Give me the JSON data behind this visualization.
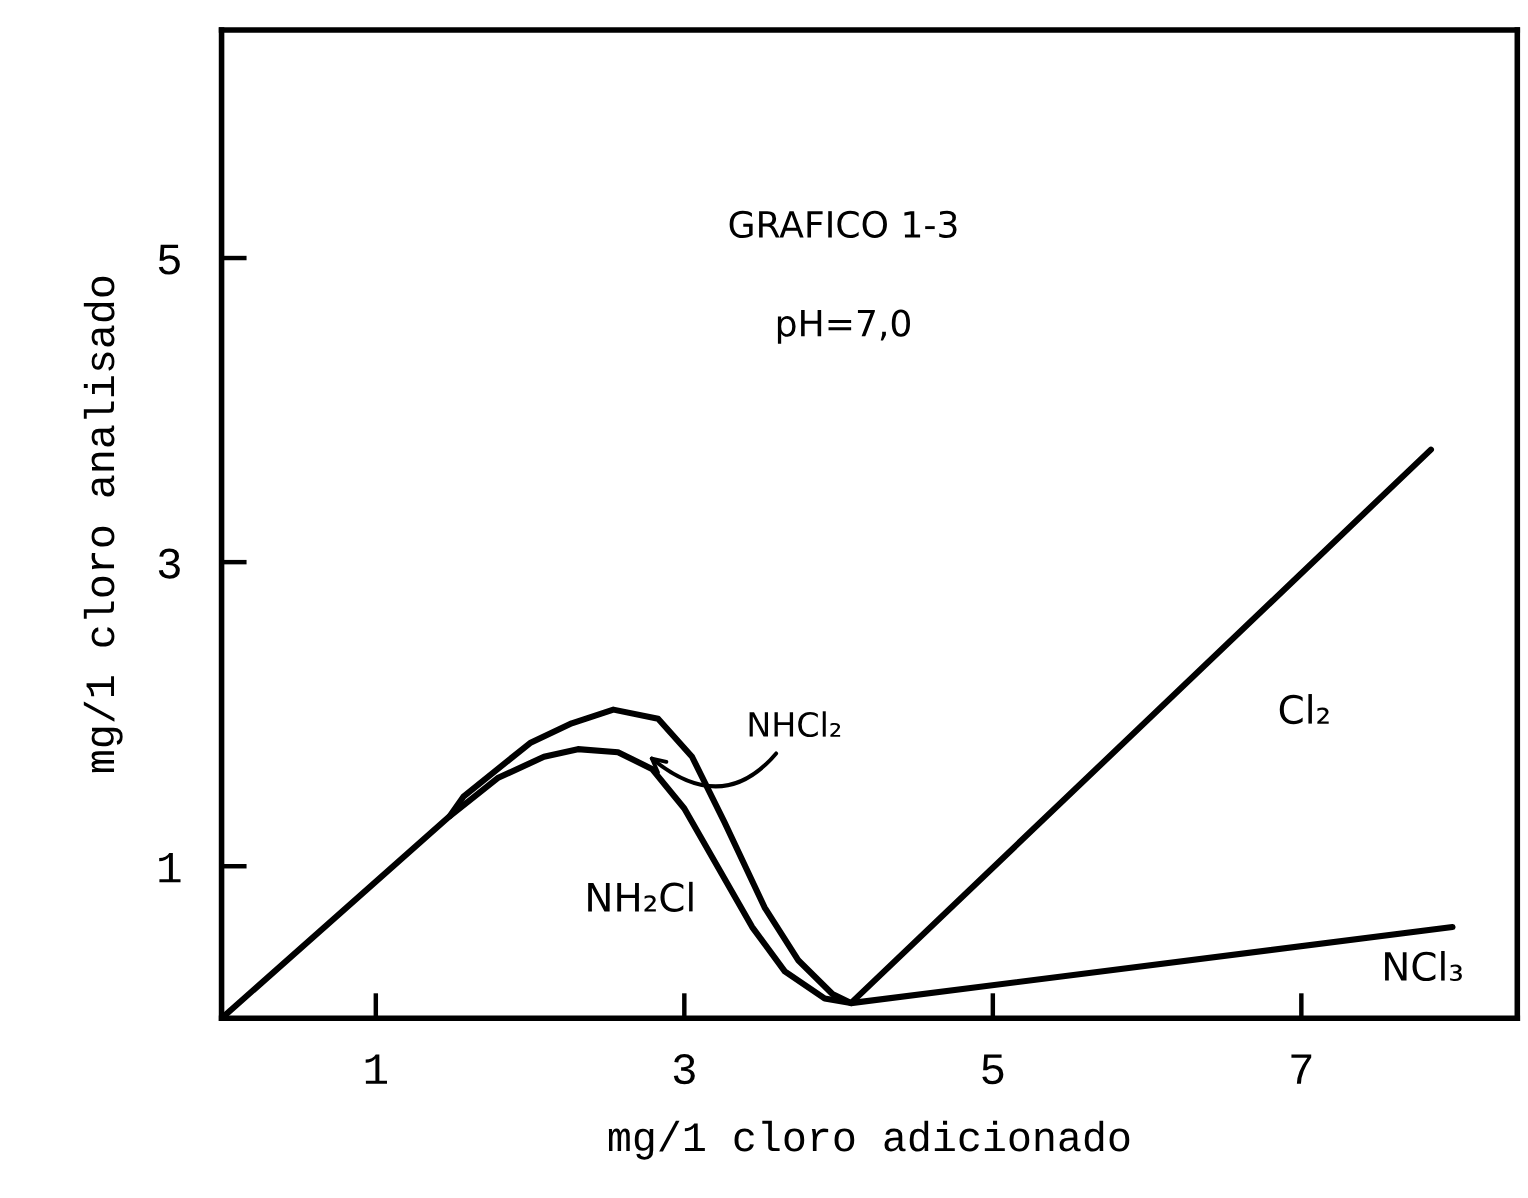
{
  "chart_data": {
    "type": "line",
    "title": "GRAFICO 1-3",
    "subtitle": "pH=7,0",
    "xlabel": "mg/1 cloro adicionado",
    "ylabel": "mg/1 cloro analisado",
    "xlim": [
      0,
      8.4
    ],
    "ylim": [
      0,
      6.5
    ],
    "xticks": [
      1,
      3,
      5,
      7
    ],
    "yticks": [
      1,
      3,
      5
    ],
    "grid": false,
    "legend": false,
    "marker": "none",
    "line_style": "solid",
    "series": [
      {
        "color": "#000000",
        "x": [
          0,
          1.48,
          1.57,
          2.0,
          2.27,
          2.54,
          2.83,
          3.05,
          3.26,
          3.52,
          3.74,
          3.96,
          4.08,
          7.84
        ],
        "values": [
          0,
          1.33,
          1.46,
          1.81,
          1.94,
          2.03,
          1.97,
          1.72,
          1.29,
          0.73,
          0.38,
          0.16,
          0.1,
          3.74
        ]
      },
      {
        "color": "#000000",
        "x": [
          1.48,
          1.79,
          2.09,
          2.31,
          2.57,
          2.79,
          3.0,
          3.22,
          3.44,
          3.65,
          3.91,
          4.08,
          7.98
        ],
        "values": [
          1.33,
          1.58,
          1.72,
          1.77,
          1.75,
          1.64,
          1.38,
          0.99,
          0.6,
          0.31,
          0.13,
          0.1,
          0.6
        ]
      }
    ],
    "annotations": [
      "NH₂Cl",
      {
        "text": "NHCl₂",
        "x": 2.74,
        "y": 1.75
      },
      "Cl₂",
      "NCl₃"
    ]
  }
}
